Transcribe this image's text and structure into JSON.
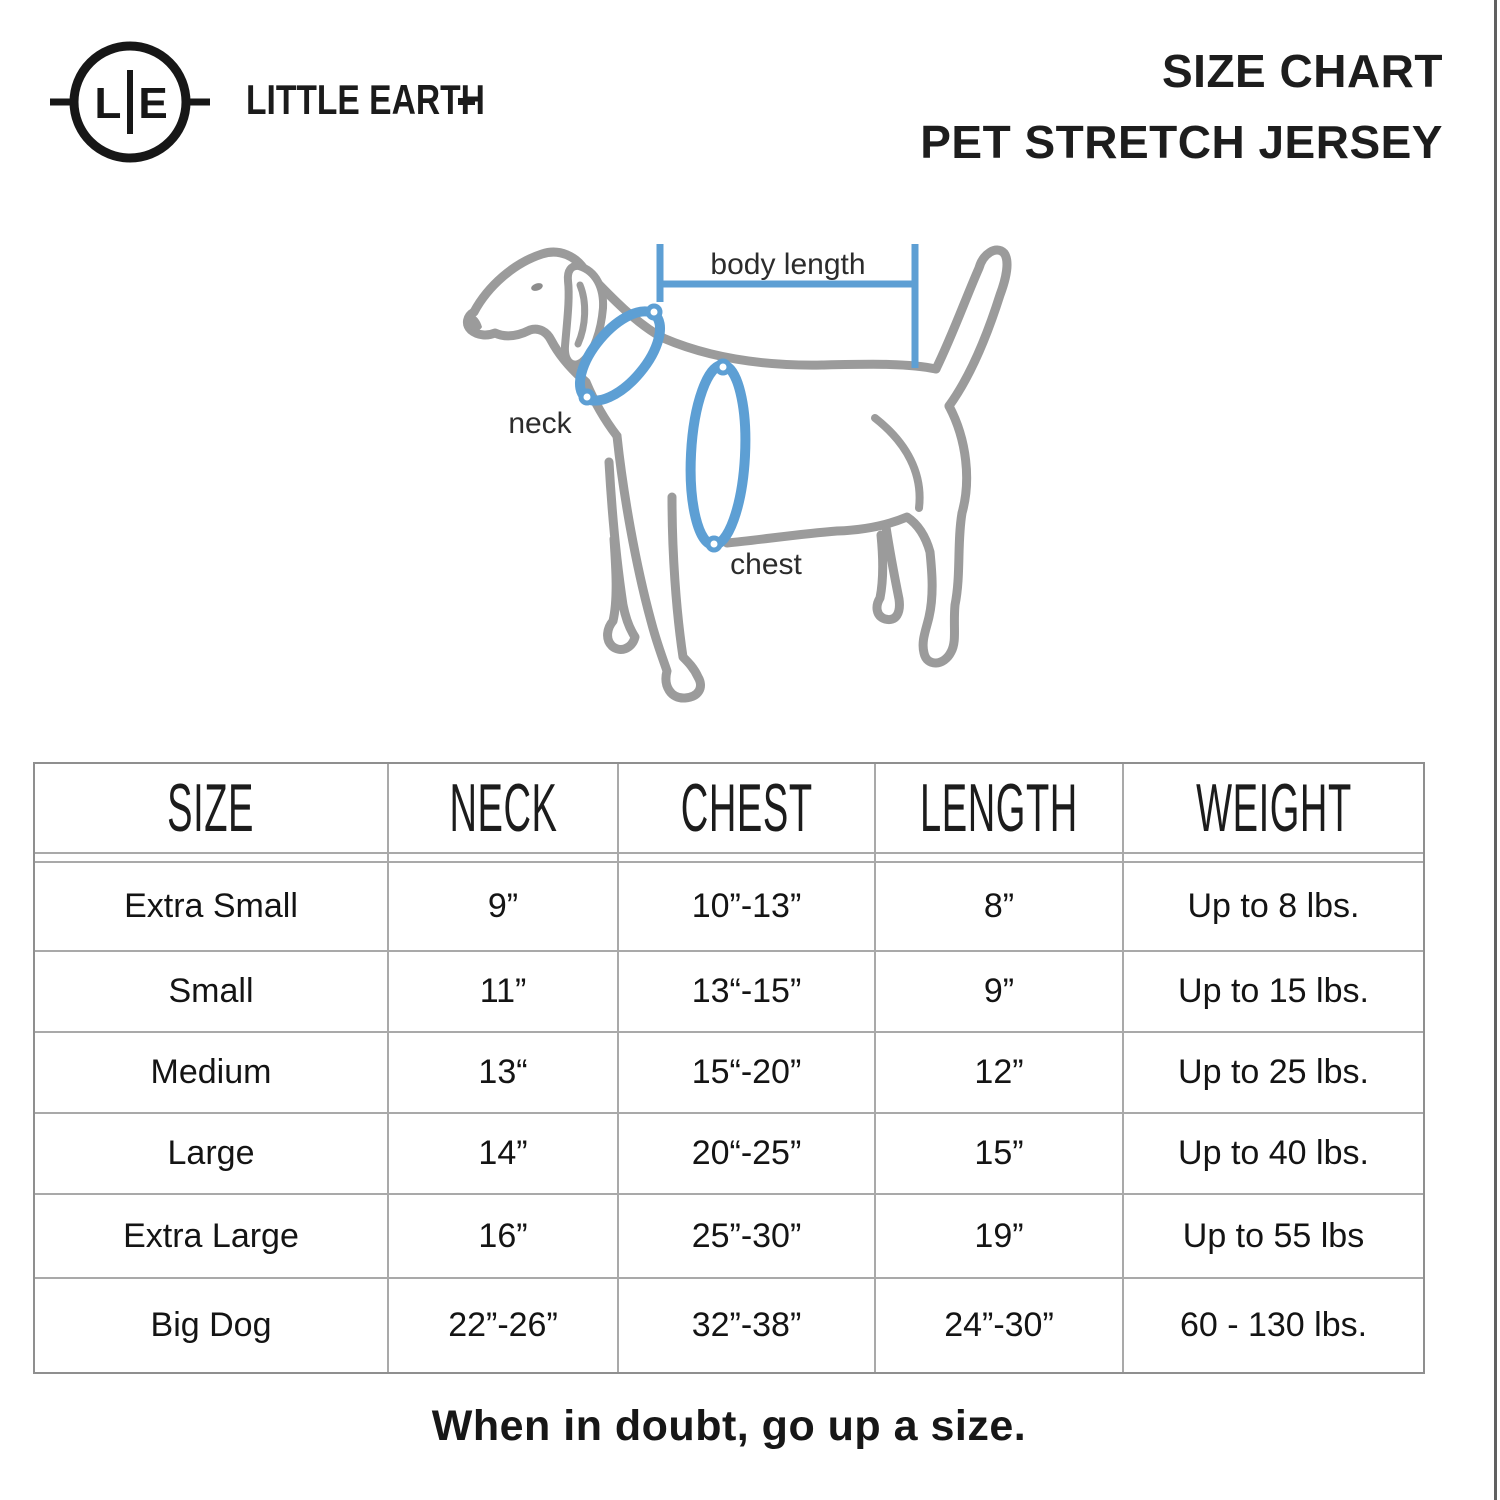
{
  "logo": {
    "monogram_left": "L",
    "monogram_right": "E",
    "wordmark": "LITTLE EARTH"
  },
  "title": {
    "line1": "SIZE CHART",
    "line2": "PET STRETCH JERSEY"
  },
  "diagram": {
    "labels": {
      "body_length": "body length",
      "neck": "neck",
      "chest": "chest"
    },
    "colors": {
      "outline_gray": "#9b9b9b",
      "measure_blue": "#5d9fd4"
    }
  },
  "table": {
    "headers": [
      "SIZE",
      "NECK",
      "CHEST",
      "LENGTH",
      "WEIGHT"
    ],
    "rows": [
      [
        "Extra Small",
        "9”",
        "10”-13”",
        "8”",
        "Up to 8 lbs."
      ],
      [
        "Small",
        "11”",
        "13“-15”",
        "9”",
        "Up to 15 lbs."
      ],
      [
        "Medium",
        "13“",
        "15“-20”",
        "12”",
        "Up to 25 lbs."
      ],
      [
        "Large",
        "14”",
        "20“-25”",
        "15”",
        "Up to 40 lbs."
      ],
      [
        "Extra Large",
        "16”",
        "25”-30”",
        "19”",
        "Up to 55 lbs"
      ],
      [
        "Big Dog",
        "22”-26”",
        "32”-38”",
        "24”-30”",
        "60 - 130 lbs."
      ]
    ]
  },
  "footer": {
    "note": "When in doubt, go up a size."
  },
  "chart_data": {
    "type": "table",
    "title": "SIZE CHART - PET STRETCH JERSEY",
    "columns": [
      "SIZE",
      "NECK",
      "CHEST",
      "LENGTH",
      "WEIGHT"
    ],
    "rows": [
      [
        "Extra Small",
        "9\"",
        "10\"-13\"",
        "8\"",
        "Up to 8 lbs."
      ],
      [
        "Small",
        "11\"",
        "13\"-15\"",
        "9\"",
        "Up to 15 lbs."
      ],
      [
        "Medium",
        "13\"",
        "15\"-20\"",
        "12\"",
        "Up to 25 lbs."
      ],
      [
        "Large",
        "14\"",
        "20\"-25\"",
        "15\"",
        "Up to 40 lbs."
      ],
      [
        "Extra Large",
        "16\"",
        "25\"-30\"",
        "19\"",
        "Up to 55 lbs"
      ],
      [
        "Big Dog",
        "22\"-26\"",
        "32\"-38\"",
        "24\"-30\"",
        "60 - 130 lbs."
      ]
    ]
  }
}
